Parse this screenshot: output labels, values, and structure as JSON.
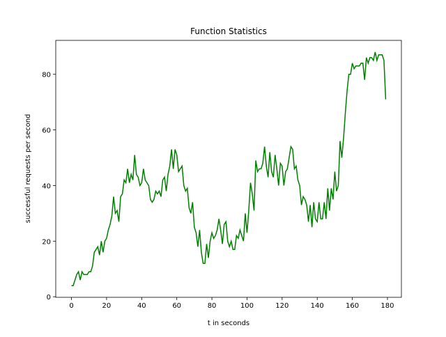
{
  "chart_data": {
    "type": "line",
    "title": "Function Statistics",
    "x_label": "t in seconds",
    "y_label": "successful requests per second",
    "x": [
      0,
      1,
      2,
      3,
      4,
      5,
      6,
      7,
      8,
      9,
      10,
      11,
      12,
      13,
      14,
      15,
      16,
      17,
      18,
      19,
      20,
      21,
      22,
      23,
      24,
      25,
      26,
      27,
      28,
      29,
      30,
      31,
      32,
      33,
      34,
      35,
      36,
      37,
      38,
      39,
      40,
      41,
      42,
      43,
      44,
      45,
      46,
      47,
      48,
      49,
      50,
      51,
      52,
      53,
      54,
      55,
      56,
      57,
      58,
      59,
      60,
      61,
      62,
      63,
      64,
      65,
      66,
      67,
      68,
      69,
      70,
      71,
      72,
      73,
      74,
      75,
      76,
      77,
      78,
      79,
      80,
      81,
      82,
      83,
      84,
      85,
      86,
      87,
      88,
      89,
      90,
      91,
      92,
      93,
      94,
      95,
      96,
      97,
      98,
      99,
      100,
      101,
      102,
      103,
      104,
      105,
      106,
      107,
      108,
      109,
      110,
      111,
      112,
      113,
      114,
      115,
      116,
      117,
      118,
      119,
      120,
      121,
      122,
      123,
      124,
      125,
      126,
      127,
      128,
      129,
      130,
      131,
      132,
      133,
      134,
      135,
      136,
      137,
      138,
      139,
      140,
      141,
      142,
      143,
      144,
      145,
      146,
      147,
      148,
      149,
      150,
      151,
      152,
      153,
      154,
      155,
      156,
      157,
      158,
      159,
      160,
      161,
      162,
      163,
      164,
      165,
      166,
      167,
      168,
      169,
      170,
      171,
      172,
      173,
      174,
      175,
      176,
      177,
      178,
      179
    ],
    "series": [
      {
        "color": "#008000",
        "values": [
          4,
          4,
          6,
          8,
          9,
          6,
          9,
          8,
          8,
          8,
          9,
          9,
          11,
          16,
          17,
          18,
          15,
          20,
          16,
          20,
          21,
          24,
          26,
          29,
          36,
          30,
          31,
          27,
          36,
          37,
          42,
          41,
          46,
          41,
          44,
          42,
          51,
          44,
          43,
          40,
          41,
          46,
          42,
          41,
          40,
          35,
          34,
          35,
          38,
          37,
          38,
          36,
          42,
          43,
          38,
          44,
          47,
          53,
          46,
          53,
          51,
          45,
          46,
          47,
          40,
          38,
          39,
          32,
          30,
          34,
          25,
          23,
          18,
          24,
          16,
          12,
          12,
          19,
          14,
          20,
          23,
          21,
          22,
          24,
          28,
          24,
          19,
          26,
          27,
          20,
          18,
          20,
          17,
          17,
          22,
          21,
          24,
          22,
          20,
          30,
          23,
          31,
          41,
          37,
          31,
          49,
          45,
          46,
          46,
          48,
          54,
          47,
          43,
          52,
          45,
          43,
          51,
          46,
          40,
          48,
          47,
          40,
          45,
          46,
          50,
          54,
          53,
          46,
          47,
          42,
          40,
          33,
          36,
          35,
          33,
          27,
          33,
          25,
          34,
          28,
          27,
          34,
          28,
          28,
          34,
          28,
          39,
          31,
          39,
          35,
          45,
          38,
          40,
          56,
          50,
          57,
          66,
          74,
          80,
          80,
          84,
          82,
          83,
          83,
          83,
          84,
          84,
          78,
          86,
          84,
          86,
          86,
          85,
          88,
          85,
          87,
          87,
          87,
          85,
          71
        ]
      }
    ],
    "xlim": [
      -8.95,
      187.95
    ],
    "ylim": [
      -0.2,
      92.2
    ],
    "xticks": [
      0,
      20,
      40,
      60,
      80,
      100,
      120,
      140,
      160,
      180
    ],
    "yticks": [
      0,
      20,
      40,
      60,
      80
    ]
  }
}
